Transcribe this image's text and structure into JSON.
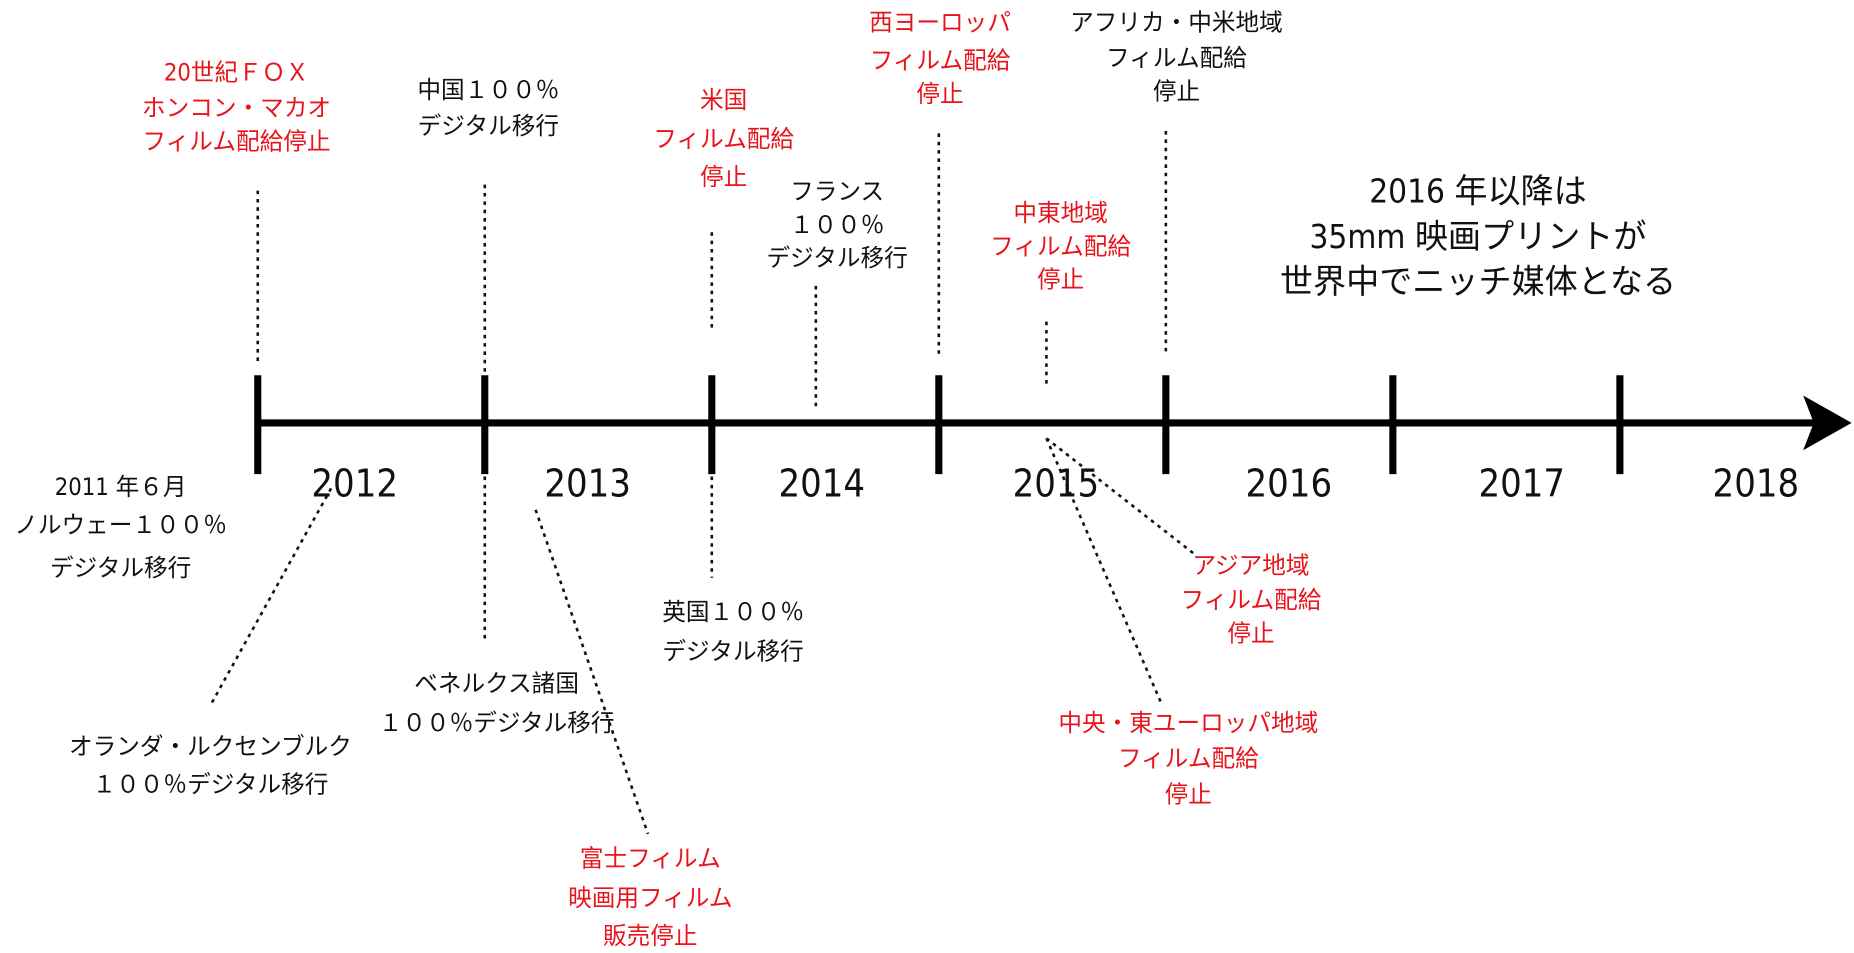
{
  "years": [
    "2012",
    "2013",
    "2014",
    "2015",
    "2016",
    "2017",
    "2018"
  ],
  "events": [
    {
      "lines": [
        "20世紀ＦＯＸ",
        "ホンコン・マカオ",
        "フィルム配給停止"
      ]
    },
    {
      "lines": [
        "中国１００％",
        "デジタル移行"
      ]
    },
    {
      "lines": [
        "米国",
        "フィルム配給",
        "停止"
      ]
    },
    {
      "lines": [
        "フランス",
        "１００％",
        "デジタル移行"
      ]
    },
    {
      "lines": [
        "西ヨーロッパ",
        "フィルム配給",
        "停止"
      ]
    },
    {
      "lines": [
        "中東地域",
        "フィルム配給",
        "停止"
      ]
    },
    {
      "lines": [
        "アフリカ・中米地域",
        "フィルム配給",
        "停止"
      ]
    },
    {
      "lines": [
        "2011 年６月",
        "ノルウェー１００％",
        "デジタル移行"
      ]
    },
    {
      "lines": [
        "オランダ・ルクセンブルク",
        "１００％デジタル移行"
      ]
    },
    {
      "lines": [
        "ベネルクス諸国",
        "１００％デジタル移行"
      ]
    },
    {
      "lines": [
        "富士フィルム",
        "映画用フィルム",
        "販売停止"
      ]
    },
    {
      "lines": [
        "英国１００％",
        "デジタル移行"
      ]
    },
    {
      "lines": [
        "アジア地域",
        "フィルム配給",
        "停止"
      ]
    },
    {
      "lines": [
        "中央・東ユーロッパ地域",
        "フィルム配給",
        "停止"
      ]
    }
  ],
  "note": {
    "lines": [
      "2016 年以降は",
      "35mm 映画プリントが",
      "世界中でニッチ媒体となる"
    ]
  }
}
